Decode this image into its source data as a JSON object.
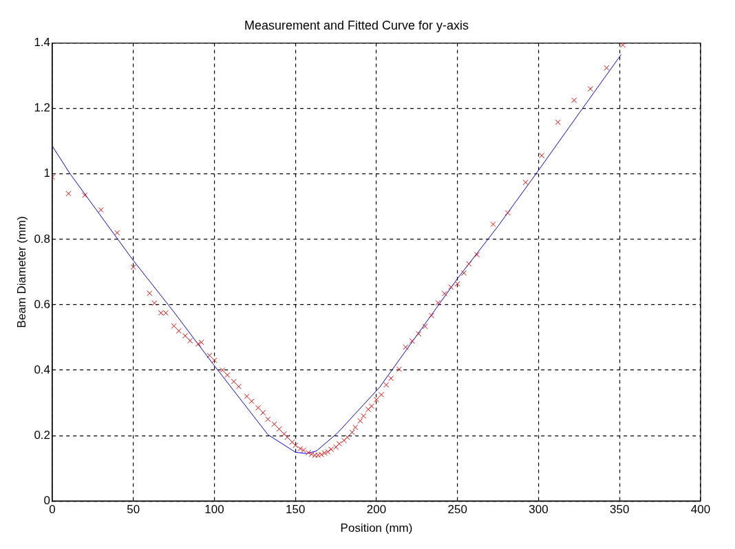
{
  "chart_data": {
    "type": "scatter",
    "title": "Measurement and Fitted Curve for y-axis",
    "xlabel": "Position (mm)",
    "ylabel": "Beam Diameter (mm)",
    "xlim": [
      0,
      400
    ],
    "xticks": [
      0,
      50,
      100,
      150,
      200,
      250,
      300,
      350,
      400
    ],
    "ylim": [
      0,
      1.4
    ],
    "yticks": [
      0,
      0.2,
      0.4,
      0.6,
      0.8,
      1,
      1.2,
      1.4
    ],
    "grid": true,
    "legend": false,
    "series": [
      {
        "color": "#ff0000",
        "marker": "cross",
        "x": [
          0,
          10,
          20,
          30,
          40,
          50,
          60,
          63,
          67,
          70,
          75,
          78,
          82,
          85,
          90,
          92,
          97,
          100,
          105,
          108,
          112,
          115,
          120,
          123,
          127,
          130,
          133,
          137,
          140,
          143,
          145,
          148,
          150,
          153,
          155,
          158,
          160,
          162,
          164,
          166,
          168,
          170,
          172,
          175,
          177,
          180,
          182,
          185,
          187,
          190,
          192,
          195,
          197,
          200,
          203,
          206,
          209,
          214,
          218,
          222,
          226,
          230,
          234,
          238,
          242,
          246,
          250,
          254,
          257,
          262,
          272,
          281,
          292,
          302,
          312,
          322,
          332,
          342,
          352
        ],
        "values": [
          0.99,
          0.94,
          0.935,
          0.89,
          0.82,
          0.715,
          0.635,
          0.605,
          0.575,
          0.575,
          0.535,
          0.52,
          0.505,
          0.49,
          0.48,
          0.485,
          0.445,
          0.43,
          0.4,
          0.385,
          0.365,
          0.35,
          0.32,
          0.305,
          0.285,
          0.27,
          0.25,
          0.235,
          0.22,
          0.205,
          0.195,
          0.18,
          0.17,
          0.16,
          0.155,
          0.148,
          0.143,
          0.14,
          0.14,
          0.142,
          0.147,
          0.15,
          0.158,
          0.165,
          0.175,
          0.185,
          0.195,
          0.21,
          0.225,
          0.245,
          0.26,
          0.28,
          0.29,
          0.31,
          0.325,
          0.355,
          0.375,
          0.403,
          0.47,
          0.489,
          0.511,
          0.534,
          0.567,
          0.606,
          0.634,
          0.654,
          0.664,
          0.697,
          0.725,
          0.753,
          0.846,
          0.881,
          0.974,
          1.056,
          1.158,
          1.225,
          1.26,
          1.324,
          1.394
        ]
      },
      {
        "type": "line",
        "color": "#0000ff",
        "marker": "none",
        "line_style": "solid",
        "x": [
          0,
          11,
          50,
          75,
          99,
          133,
          150,
          157,
          163,
          176,
          202,
          250,
          275,
          299,
          327,
          351
        ],
        "values": [
          1.085,
          1.0,
          0.735,
          0.578,
          0.42,
          0.203,
          0.149,
          0.145,
          0.153,
          0.208,
          0.348,
          0.68,
          0.84,
          1.004,
          1.199,
          1.365
        ]
      }
    ]
  }
}
